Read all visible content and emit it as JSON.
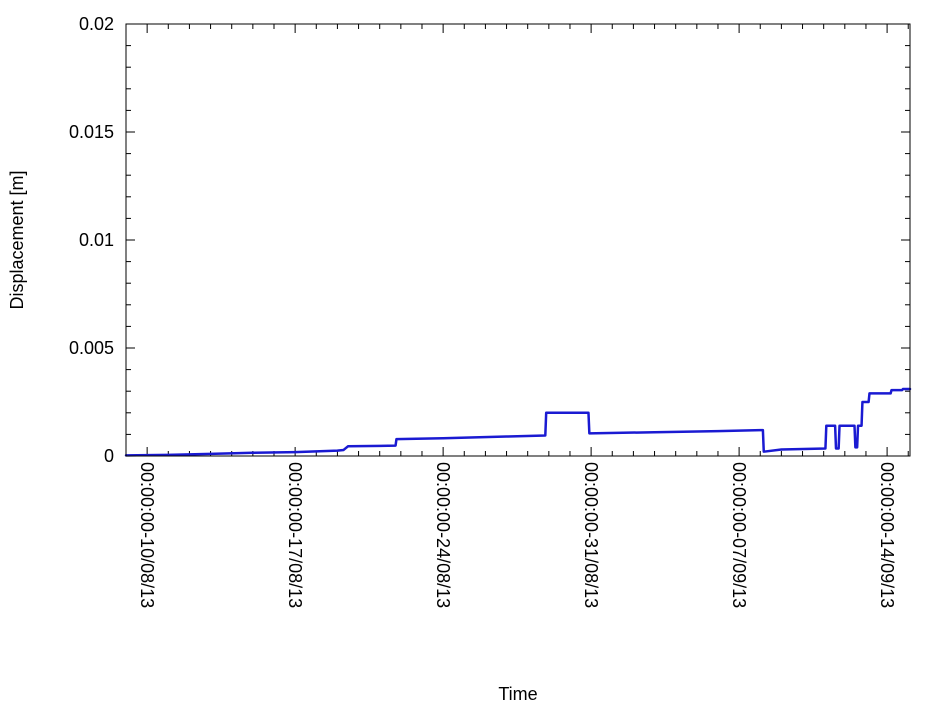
{
  "chart_data": {
    "type": "line",
    "title": "",
    "xlabel": "Time",
    "ylabel": "Displacement [m]",
    "ylim": [
      0,
      0.02
    ],
    "xlim": [
      "2013-08-09T00:00",
      "2013-09-15T02:00"
    ],
    "yticks": [
      0,
      0.005,
      0.01,
      0.015,
      0.02
    ],
    "ytick_labels": [
      "0",
      "0.005",
      "0.01",
      "0.015",
      "0.02"
    ],
    "xticks": [
      "2013-08-10T00:00",
      "2013-08-17T00:00",
      "2013-08-24T00:00",
      "2013-08-31T00:00",
      "2013-09-07T00:00",
      "2013-09-14T00:00"
    ],
    "xtick_labels": [
      "00:00:00-10/08/13",
      "00:00:00-17/08/13",
      "00:00:00-24/08/13",
      "00:00:00-31/08/13",
      "00:00:00-07/09/13",
      "00:00:00-14/09/13"
    ],
    "grid": false,
    "legend": "none",
    "colors": {
      "series": "#1a1ad2",
      "axis": "#000000",
      "background": "#ffffff"
    },
    "series": [
      {
        "color": "#1a1ad2",
        "x": [
          "2013-08-09T00:00",
          "2013-08-11T00:00",
          "2013-08-13T00:00",
          "2013-08-15T00:00",
          "2013-08-17T00:00",
          "2013-08-19T00:00",
          "2013-08-19T07:00",
          "2013-08-19T12:00",
          "2013-08-21T18:00",
          "2013-08-21T19:00",
          "2013-08-24T00:00",
          "2013-08-27T00:00",
          "2013-08-28T20:00",
          "2013-08-28T21:00",
          "2013-08-30T21:00",
          "2013-08-30T22:00",
          "2013-09-03T00:00",
          "2013-09-06T00:00",
          "2013-09-08T00:00",
          "2013-09-08T03:00",
          "2013-09-08T04:00",
          "2013-09-09T00:00",
          "2013-09-11T02:00",
          "2013-09-11T03:00",
          "2013-09-11T13:00",
          "2013-09-11T14:00",
          "2013-09-11T17:00",
          "2013-09-11T18:00",
          "2013-09-12T11:00",
          "2013-09-12T12:00",
          "2013-09-12T14:00",
          "2013-09-12T15:00",
          "2013-09-12T19:00",
          "2013-09-12T20:00",
          "2013-09-13T03:00",
          "2013-09-13T04:00",
          "2013-09-14T04:00",
          "2013-09-14T05:00",
          "2013-09-14T17:00",
          "2013-09-14T18:00",
          "2013-09-15T02:00"
        ],
        "y": [
          3e-05,
          5e-05,
          0.0001,
          0.00015,
          0.00018,
          0.00025,
          0.00028,
          0.00045,
          0.00048,
          0.00078,
          0.00082,
          0.0009,
          0.00095,
          0.002,
          0.002,
          0.00105,
          0.0011,
          0.00115,
          0.0012,
          0.0012,
          0.0002,
          0.0003,
          0.00035,
          0.0014,
          0.0014,
          0.00035,
          0.00035,
          0.0014,
          0.0014,
          0.0004,
          0.0004,
          0.0014,
          0.0014,
          0.0025,
          0.0025,
          0.0029,
          0.0029,
          0.00305,
          0.00305,
          0.0031,
          0.0031
        ]
      }
    ]
  }
}
